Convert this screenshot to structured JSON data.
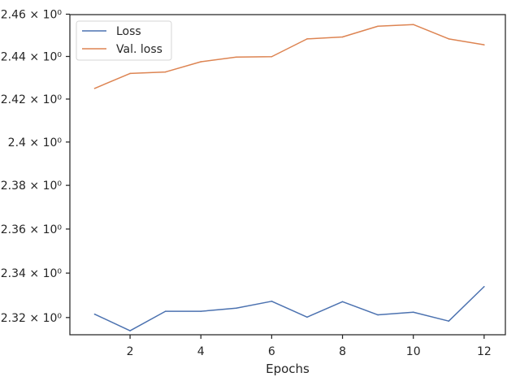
{
  "chart_data": {
    "type": "line",
    "title": "",
    "xlabel": "Epochs",
    "ylabel": "",
    "yscale": "log",
    "x": [
      1,
      2,
      3,
      4,
      5,
      6,
      7,
      8,
      9,
      10,
      11,
      12
    ],
    "xticks": [
      2,
      4,
      6,
      8,
      10,
      12
    ],
    "xtick_labels": [
      "2",
      "4",
      "6",
      "8",
      "10",
      "12"
    ],
    "xlim": [
      0.3,
      12.6
    ],
    "yticks": [
      2.32,
      2.34,
      2.36,
      2.38,
      2.4,
      2.42,
      2.44,
      2.46
    ],
    "ytick_labels": [
      "2.32 × 10⁰",
      "2.34 × 10⁰",
      "2.36 × 10⁰",
      "2.38 × 10⁰",
      "2.4 × 10⁰",
      "2.42 × 10⁰",
      "2.44 × 10⁰",
      "2.46 × 10⁰"
    ],
    "ylim": [
      2.3123,
      2.4598
    ],
    "grid": false,
    "legend_position": "top-left",
    "series": [
      {
        "name": "Loss",
        "color": "#4c72b0",
        "values": [
          2.3215,
          2.3141,
          2.3228,
          2.3228,
          2.3242,
          2.3273,
          2.3202,
          2.3271,
          2.3212,
          2.3224,
          2.3184,
          2.3339
        ]
      },
      {
        "name": "Val. loss",
        "color": "#dd8452",
        "values": [
          2.425,
          2.432,
          2.4327,
          2.4375,
          2.4397,
          2.4399,
          2.4483,
          2.4492,
          2.4543,
          2.4551,
          2.4483,
          2.4455
        ]
      }
    ]
  }
}
